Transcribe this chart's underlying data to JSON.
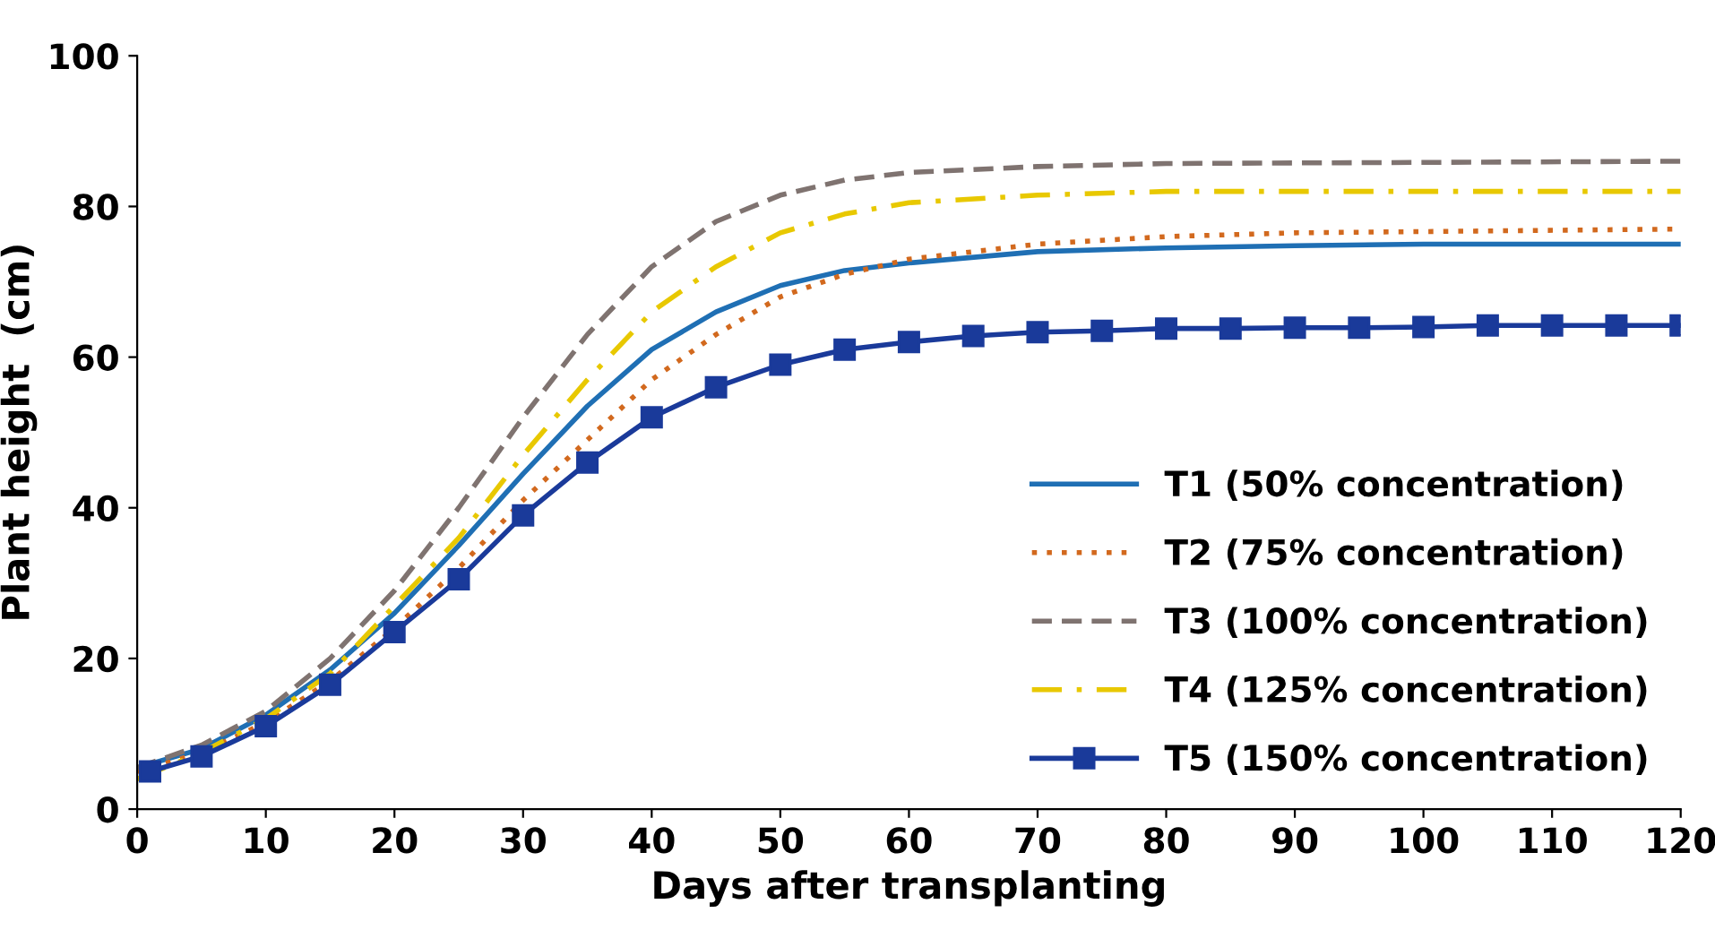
{
  "chart_data": {
    "type": "line",
    "xlabel": "Days after transplanting",
    "ylabel": "Plant height  (cm)",
    "xlim": [
      0,
      120
    ],
    "xticks": [
      0,
      10,
      20,
      30,
      40,
      50,
      60,
      70,
      80,
      90,
      100,
      110,
      120
    ],
    "ylim": [
      0,
      100
    ],
    "yticks": [
      0,
      20,
      40,
      60,
      80,
      100
    ],
    "grid": false,
    "legend": "bottom right",
    "series": [
      {
        "name": "T1 (50% concentration)",
        "color": "#1f6fb4",
        "line_style": "solid",
        "marker": "none",
        "x": [
          0,
          5,
          10,
          15,
          20,
          25,
          30,
          35,
          40,
          45,
          50,
          55,
          60,
          70,
          80,
          90,
          100,
          120
        ],
        "values": [
          5.5,
          8,
          12.5,
          18.5,
          26,
          35,
          44.5,
          53.5,
          61,
          66,
          69.5,
          71.5,
          72.5,
          74,
          74.5,
          74.8,
          75,
          75
        ]
      },
      {
        "name": "T2 (75% concentration)",
        "color": "#d2691e",
        "line_style": "dotted",
        "marker": "none",
        "x": [
          0,
          5,
          10,
          15,
          20,
          25,
          30,
          35,
          40,
          45,
          50,
          55,
          60,
          70,
          80,
          90,
          120
        ],
        "values": [
          5,
          7.5,
          11.5,
          17,
          24,
          32,
          41,
          49,
          57,
          63,
          68,
          71,
          73,
          75,
          76,
          76.5,
          77
        ]
      },
      {
        "name": "T3 (100% concentration)",
        "color": "#7f7370",
        "line_style": "dashed",
        "marker": "none",
        "x": [
          0,
          5,
          10,
          15,
          20,
          25,
          30,
          35,
          40,
          45,
          50,
          55,
          60,
          70,
          80,
          120
        ],
        "values": [
          5.5,
          8.5,
          13,
          20,
          29,
          40,
          52,
          63,
          72,
          78,
          81.5,
          83.5,
          84.5,
          85.3,
          85.7,
          86
        ]
      },
      {
        "name": "T4 (125% concentration)",
        "color": "#e8c800",
        "line_style": "dashdot",
        "marker": "none",
        "x": [
          0,
          5,
          10,
          15,
          20,
          25,
          30,
          35,
          40,
          45,
          50,
          55,
          60,
          70,
          80,
          120
        ],
        "values": [
          4,
          7.5,
          12,
          18,
          27,
          36,
          47,
          57,
          66,
          72,
          76.5,
          79,
          80.5,
          81.5,
          82,
          82
        ]
      },
      {
        "name": "T5 (150% concentration)",
        "color": "#1a3a9a",
        "line_style": "solid",
        "marker": "square",
        "x": [
          1,
          5,
          10,
          15,
          20,
          25,
          30,
          35,
          40,
          45,
          50,
          55,
          60,
          65,
          70,
          75,
          80,
          85,
          90,
          95,
          100,
          105,
          110,
          115,
          120
        ],
        "values": [
          5,
          7,
          11,
          16.5,
          23.5,
          30.5,
          39,
          46,
          52,
          56,
          59,
          61,
          62,
          62.8,
          63.3,
          63.5,
          63.8,
          63.8,
          63.9,
          63.9,
          64,
          64.2,
          64.2,
          64.2,
          64.2
        ]
      }
    ]
  }
}
